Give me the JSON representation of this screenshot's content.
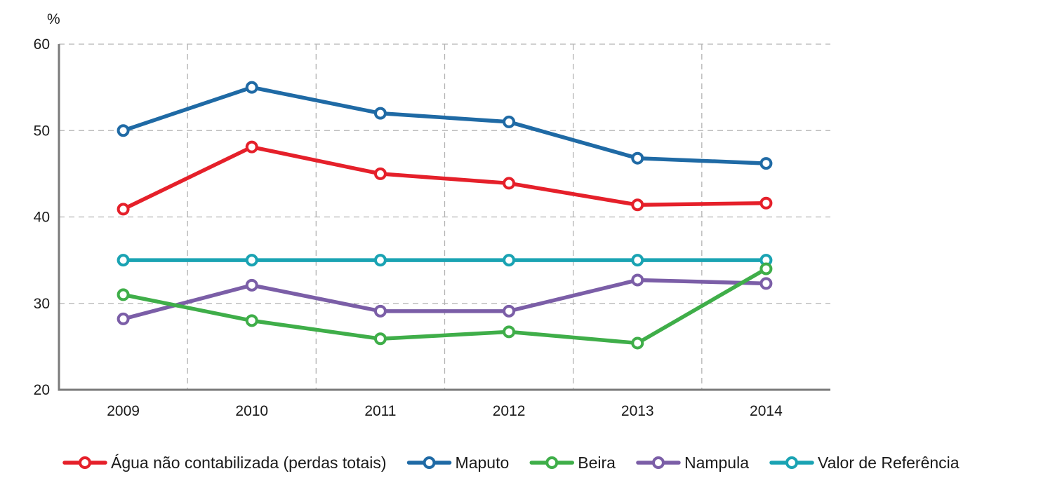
{
  "chart_data": {
    "type": "line",
    "ylabel": "%",
    "ylim": [
      20,
      60
    ],
    "yticks": [
      20,
      30,
      40,
      50,
      60
    ],
    "x": [
      "2009",
      "2010",
      "2011",
      "2012",
      "2013",
      "2014"
    ],
    "grid": true,
    "legend_position": "bottom",
    "series": [
      {
        "name": "Água não contabilizada (perdas totais)",
        "color": "#e5202a",
        "values": [
          40.9,
          48.1,
          45.0,
          43.9,
          41.4,
          41.6
        ]
      },
      {
        "name": "Maputo",
        "color": "#1f6aa5",
        "values": [
          50.0,
          55.0,
          52.0,
          51.0,
          46.8,
          46.2
        ]
      },
      {
        "name": "Beira",
        "color": "#3fae49",
        "values": [
          31.0,
          28.0,
          25.9,
          26.7,
          25.4,
          34.0
        ]
      },
      {
        "name": "Nampula",
        "color": "#7b5ea7",
        "values": [
          28.2,
          32.1,
          29.1,
          29.1,
          32.7,
          32.3
        ]
      },
      {
        "name": "Valor de Referência",
        "color": "#1aa3b3",
        "values": [
          35.0,
          35.0,
          35.0,
          35.0,
          35.0,
          35.0
        ]
      }
    ]
  }
}
